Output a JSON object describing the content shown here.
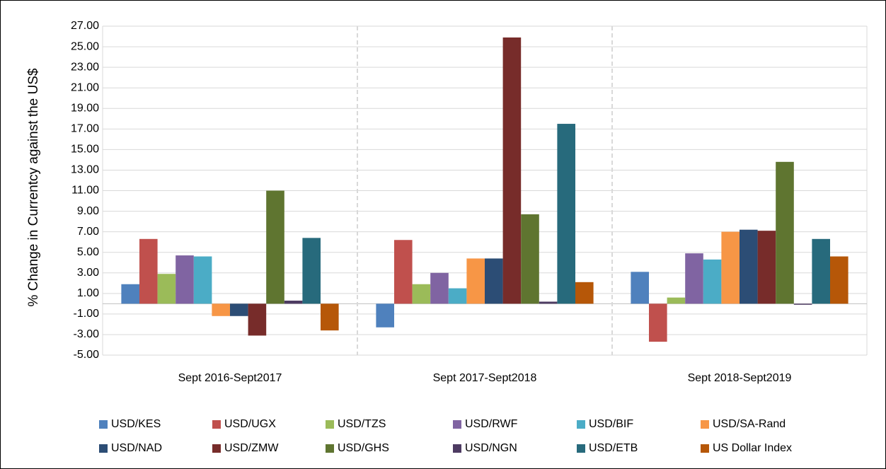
{
  "chart_data": {
    "type": "bar",
    "y_label": "% Change in Currentcy against the US$",
    "categories": [
      "Sept 2016-Sept2017",
      "Sept 2017-Sept2018",
      "Sept 2018-Sept2019"
    ],
    "series": [
      {
        "name": "USD/KES",
        "color": "#4f81bd",
        "values": [
          1.9,
          -2.3,
          3.1
        ]
      },
      {
        "name": "USD/UGX",
        "color": "#c0504d",
        "values": [
          6.3,
          6.2,
          -3.7
        ]
      },
      {
        "name": "USD/TZS",
        "color": "#9bbb59",
        "values": [
          2.9,
          1.9,
          0.6
        ]
      },
      {
        "name": "USD/RWF",
        "color": "#8064a2",
        "values": [
          4.7,
          3.0,
          4.9
        ]
      },
      {
        "name": "USD/BIF",
        "color": "#4bacc6",
        "values": [
          4.6,
          1.5,
          4.3
        ]
      },
      {
        "name": "USD/SA-Rand",
        "color": "#f79646",
        "values": [
          -1.2,
          4.4,
          7.0
        ]
      },
      {
        "name": "USD/NAD",
        "color": "#2c4d75",
        "values": [
          -1.2,
          4.4,
          7.2
        ]
      },
      {
        "name": "USD/ZMW",
        "color": "#772c2a",
        "values": [
          -3.1,
          25.9,
          7.1
        ]
      },
      {
        "name": "USD/GHS",
        "color": "#5f7530",
        "values": [
          11.0,
          8.7,
          13.8
        ]
      },
      {
        "name": "USD/NGN",
        "color": "#4d3b62",
        "values": [
          0.3,
          0.2,
          -0.1
        ]
      },
      {
        "name": "USD/ETB",
        "color": "#276a7c",
        "values": [
          6.4,
          17.5,
          6.3
        ]
      },
      {
        "name": "US Dollar Index",
        "color": "#b65708",
        "values": [
          -2.6,
          2.1,
          4.6
        ]
      }
    ],
    "ylim": [
      -5,
      27
    ],
    "yticks": [
      {
        "value": -5,
        "label": "-5.00"
      },
      {
        "value": -3,
        "label": "-3.00"
      },
      {
        "value": -1,
        "label": "-1.00"
      },
      {
        "value": 1,
        "label": "1.00"
      },
      {
        "value": 3,
        "label": "3.00"
      },
      {
        "value": 5,
        "label": "5.00"
      },
      {
        "value": 7,
        "label": "7.00"
      },
      {
        "value": 9,
        "label": "9.00"
      },
      {
        "value": 11,
        "label": "11.00"
      },
      {
        "value": 13,
        "label": "13.00"
      },
      {
        "value": 15,
        "label": "15.00"
      },
      {
        "value": 17,
        "label": "17.00"
      },
      {
        "value": 19,
        "label": "19.00"
      },
      {
        "value": 21,
        "label": "21.00"
      },
      {
        "value": 23,
        "label": "23.00"
      },
      {
        "value": 25,
        "label": "25.00"
      },
      {
        "value": 27,
        "label": "27.00"
      }
    ],
    "grid": true,
    "legend": "bottom"
  }
}
